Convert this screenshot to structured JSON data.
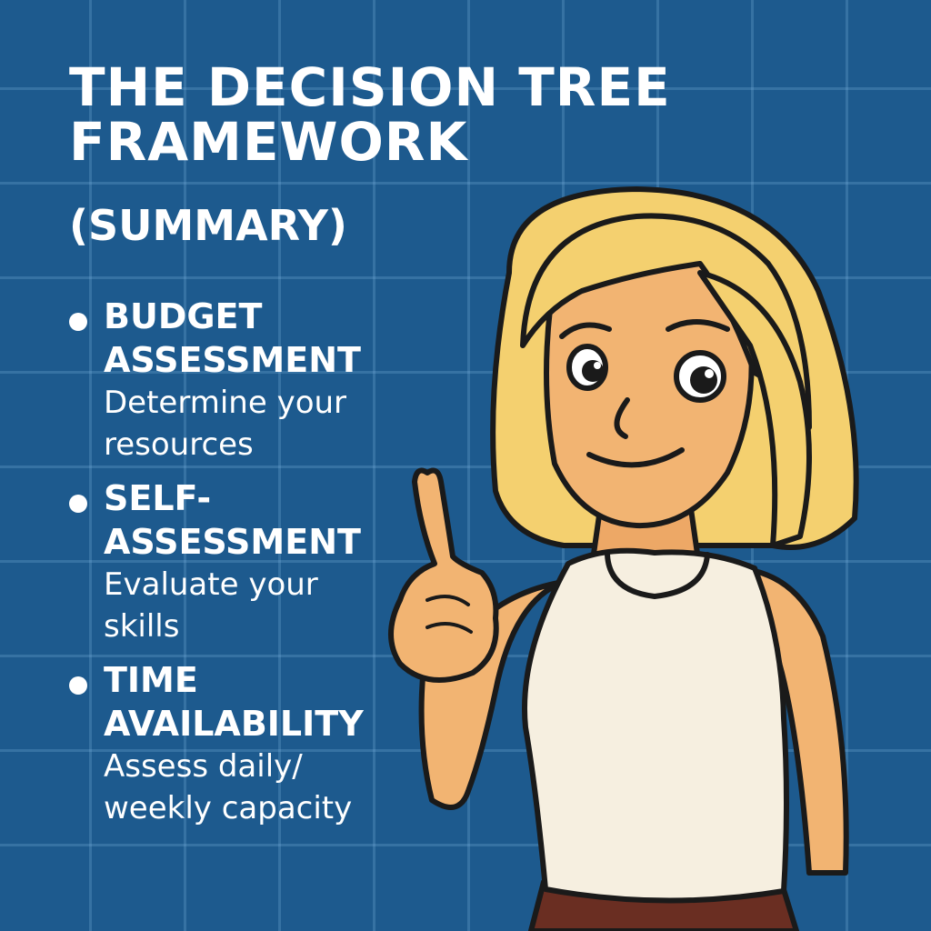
{
  "title": {
    "line1": "THE DECISION TREE",
    "line2": "FRAMEWORK",
    "subtitle": "(SUMMARY)"
  },
  "bullets": [
    {
      "heading": "BUDGET\nASSESSMENT",
      "description": "Determine your\nresources"
    },
    {
      "heading": "SELF-\nASSESSMENT",
      "description": "Evaluate your\nskills"
    },
    {
      "heading": "TIME\nAVAILABILITY",
      "description": "Assess daily/\nweekly capacity"
    }
  ],
  "colors": {
    "background": "#1d5a8e",
    "grid": "#78afdc",
    "text": "#ffffff",
    "hair": "#f4d06f",
    "skin": "#f2b472",
    "top": "#f6efe0",
    "skirt": "#6a2e22"
  }
}
